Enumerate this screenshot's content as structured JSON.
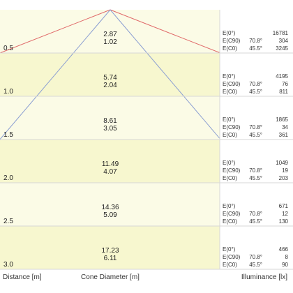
{
  "chart_data": {
    "type": "table",
    "colors": {
      "band_light": "#fbfbe6",
      "band_dark": "#f7f7cf",
      "cone_fill": "#eef0c4",
      "line_red": "#e06a6a",
      "line_blue": "#8c9fd2",
      "grid": "#d7d7d7"
    },
    "rows": [
      {
        "distance": "0.5",
        "diameter_c90": "2.87",
        "diameter_c0": "1.02",
        "e0": "16781",
        "e_c90_angle": "70.8°",
        "e_c90": "304",
        "e_c0_angle": "45.5°",
        "e_c0": "3245"
      },
      {
        "distance": "1.0",
        "diameter_c90": "5.74",
        "diameter_c0": "2.04",
        "e0": "4195",
        "e_c90_angle": "70.8°",
        "e_c90": "76",
        "e_c0_angle": "45.5°",
        "e_c0": "811"
      },
      {
        "distance": "1.5",
        "diameter_c90": "8.61",
        "diameter_c0": "3.05",
        "e0": "1865",
        "e_c90_angle": "70.8°",
        "e_c90": "34",
        "e_c0_angle": "45.5°",
        "e_c0": "361"
      },
      {
        "distance": "2.0",
        "diameter_c90": "11.49",
        "diameter_c0": "4.07",
        "e0": "1049",
        "e_c90_angle": "70.8°",
        "e_c90": "19",
        "e_c0_angle": "45.5°",
        "e_c0": "203"
      },
      {
        "distance": "2.5",
        "diameter_c90": "14.36",
        "diameter_c0": "5.09",
        "e0": "671",
        "e_c90_angle": "70.8°",
        "e_c90": "12",
        "e_c0_angle": "45.5°",
        "e_c0": "130"
      },
      {
        "distance": "3.0",
        "diameter_c90": "17.23",
        "diameter_c0": "6.11",
        "e0": "466",
        "e_c90_angle": "70.8°",
        "e_c90": "8",
        "e_c0_angle": "45.5°",
        "e_c0": "90"
      }
    ],
    "labels": {
      "e0": "E(0°)",
      "e_c90": "E(C90)",
      "e_c0": "E(C0)"
    },
    "axis_labels": {
      "distance": "Distance [m]",
      "cone_diameter": "Cone Diameter [m]",
      "illuminance": "Illuminance [lx]"
    }
  }
}
